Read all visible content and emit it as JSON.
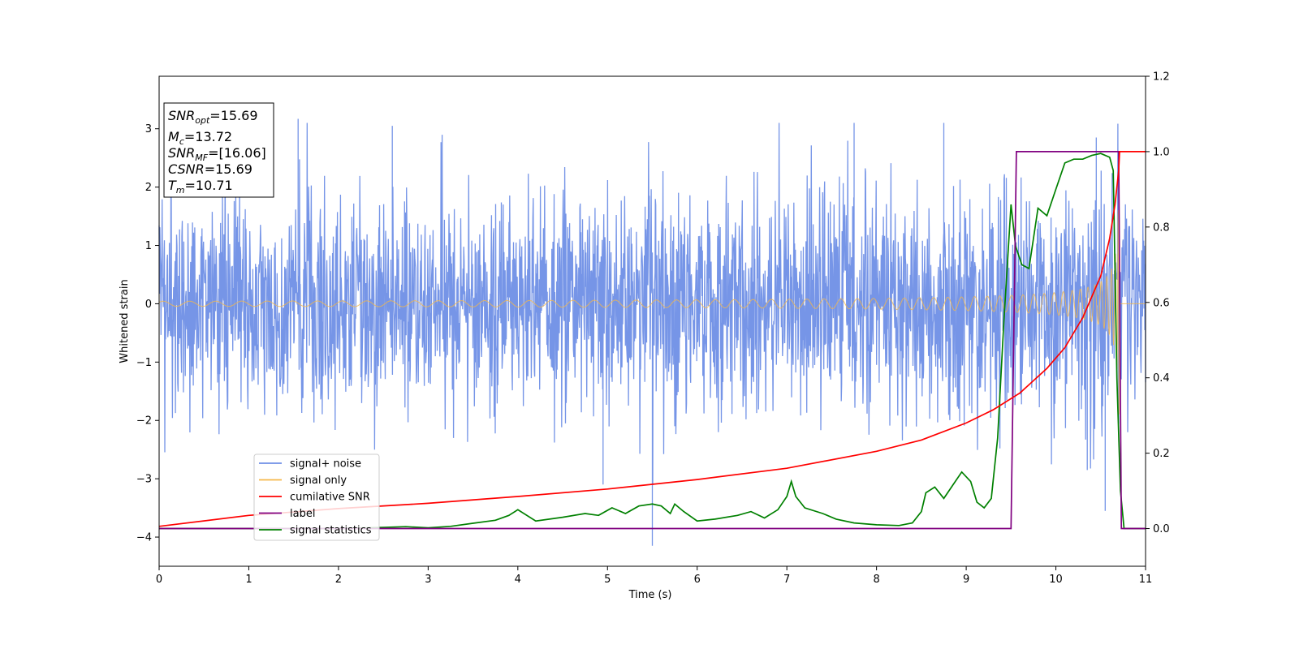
{
  "chart_data": {
    "type": "line",
    "title": "",
    "xlabel": "Time (s)",
    "ylabel": "Whitened strain",
    "xlim": [
      0,
      11
    ],
    "ylim_left": [
      -4.5,
      3.9
    ],
    "ylim_right": [
      -0.1,
      1.2
    ],
    "x_ticks": [
      "0",
      "1",
      "2",
      "3",
      "4",
      "5",
      "6",
      "7",
      "8",
      "9",
      "10",
      "11"
    ],
    "y_left_ticks": [
      "3",
      "2",
      "1",
      "0",
      "−1",
      "−2",
      "−3",
      "−4"
    ],
    "y_right_ticks": [
      "1.2",
      "1.0",
      "0.8",
      "0.6",
      "0.4",
      "0.2",
      "0.0"
    ],
    "grid": false,
    "legend_position": "lower-left",
    "stats_box": {
      "snr_opt": {
        "symbol": "SNR",
        "sub": "opt",
        "value": "=15.69"
      },
      "mc": {
        "symbol": "M",
        "sub": "c",
        "value": "=13.72"
      },
      "snr_mf": {
        "symbol": "SNR",
        "sub": "MF",
        "value": "=[16.06]"
      },
      "csnr": {
        "symbol": "CSNR",
        "value": "=15.69"
      },
      "tm": {
        "symbol": "T",
        "sub": "m",
        "value": "=10.71"
      }
    },
    "series": [
      {
        "key": "noise",
        "name": "signal+ noise",
        "axis": "left",
        "color": "#6f8fe6",
        "description_values": {
          "x_range": [
            0,
            11
          ],
          "typical_amplitude": 1.5,
          "max": 3.17,
          "min": -4.15
        }
      },
      {
        "key": "signal",
        "name": "signal only",
        "axis": "left",
        "color": "#f5b84a",
        "chirp": {
          "merger_time": 10.71,
          "amplitude_start": 0.05,
          "amplitude_max": 1.9
        }
      },
      {
        "key": "cumsnr",
        "name": "cumilative SNR",
        "axis": "right",
        "color": "#ff0000",
        "x": [
          0,
          1,
          2,
          3,
          4,
          5,
          6,
          7,
          8,
          8.5,
          9,
          9.3,
          9.6,
          9.9,
          10.1,
          10.3,
          10.5,
          10.6,
          10.66,
          10.7,
          10.71,
          10.72,
          11
        ],
        "y": [
          0.006,
          0.035,
          0.053,
          0.067,
          0.085,
          0.105,
          0.13,
          0.16,
          0.205,
          0.235,
          0.28,
          0.315,
          0.36,
          0.425,
          0.48,
          0.56,
          0.67,
          0.77,
          0.86,
          0.95,
          1.0,
          1.0,
          1.0
        ]
      },
      {
        "key": "label",
        "name": "label",
        "axis": "right",
        "color": "#800080",
        "x": [
          0,
          9.5,
          9.56,
          10.7,
          10.73,
          11
        ],
        "y": [
          0,
          0,
          1,
          1,
          0,
          0
        ]
      },
      {
        "key": "stats",
        "name": "signal statistics",
        "axis": "right",
        "color": "#008000",
        "x": [
          0,
          1,
          2,
          2.5,
          2.75,
          3,
          3.25,
          3.5,
          3.75,
          3.9,
          4.0,
          4.2,
          4.5,
          4.75,
          4.9,
          5.05,
          5.2,
          5.35,
          5.5,
          5.6,
          5.7,
          5.75,
          5.85,
          6.0,
          6.2,
          6.45,
          6.6,
          6.75,
          6.9,
          7.0,
          7.05,
          7.1,
          7.2,
          7.4,
          7.55,
          7.75,
          8.0,
          8.25,
          8.4,
          8.5,
          8.55,
          8.65,
          8.75,
          8.85,
          8.95,
          9.05,
          9.12,
          9.2,
          9.28,
          9.35,
          9.42,
          9.5,
          9.55,
          9.62,
          9.7,
          9.8,
          9.9,
          10.0,
          10.1,
          10.2,
          10.3,
          10.4,
          10.5,
          10.6,
          10.64,
          10.68,
          10.72,
          10.76,
          10.85,
          11
        ],
        "y": [
          0.0,
          0.0,
          0.0,
          0.003,
          0.005,
          0.002,
          0.006,
          0.014,
          0.022,
          0.035,
          0.05,
          0.02,
          0.03,
          0.04,
          0.035,
          0.055,
          0.04,
          0.06,
          0.065,
          0.06,
          0.04,
          0.065,
          0.045,
          0.02,
          0.025,
          0.035,
          0.045,
          0.028,
          0.05,
          0.085,
          0.125,
          0.085,
          0.055,
          0.04,
          0.025,
          0.015,
          0.01,
          0.008,
          0.015,
          0.045,
          0.095,
          0.11,
          0.08,
          0.115,
          0.15,
          0.125,
          0.07,
          0.055,
          0.08,
          0.24,
          0.55,
          0.86,
          0.75,
          0.7,
          0.69,
          0.85,
          0.83,
          0.9,
          0.97,
          0.98,
          0.98,
          0.99,
          0.995,
          0.985,
          0.95,
          0.4,
          0.1,
          0.0,
          0.0,
          0.0
        ]
      }
    ]
  }
}
